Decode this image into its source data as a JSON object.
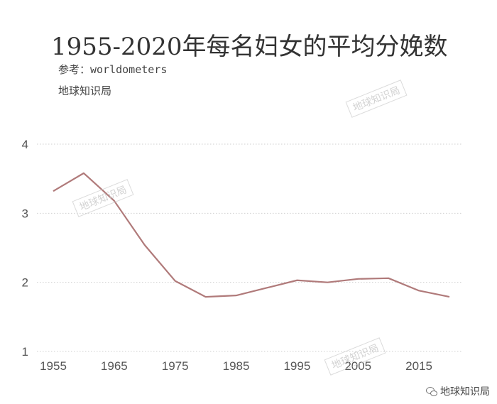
{
  "title": "1955-2020年每名妇女的平均分娩数",
  "source": "参考：worldometers",
  "brand": "地球知识局",
  "watermark_text": "地球知识局",
  "footer_brand": "地球知识局",
  "chart_data": {
    "type": "line",
    "x": [
      1955,
      1960,
      1965,
      1970,
      1975,
      1980,
      1985,
      1990,
      1995,
      2000,
      2005,
      2010,
      2015,
      2020
    ],
    "series": [
      {
        "values": [
          3.32,
          3.58,
          3.18,
          2.54,
          2.02,
          1.79,
          1.81,
          1.92,
          2.03,
          2.0,
          2.05,
          2.06,
          1.88,
          1.79
        ],
        "color": "#b07a7a"
      }
    ],
    "xticks": [
      1955,
      1965,
      1975,
      1985,
      1995,
      2005,
      2015
    ],
    "yticks": [
      1,
      2,
      3,
      4
    ],
    "xlim": [
      1955,
      2020
    ],
    "ylim": [
      1,
      4
    ],
    "grid": "horizontal-dotted",
    "title": "1955-2020年每名妇女的平均分娩数",
    "xlabel": "",
    "ylabel": ""
  }
}
